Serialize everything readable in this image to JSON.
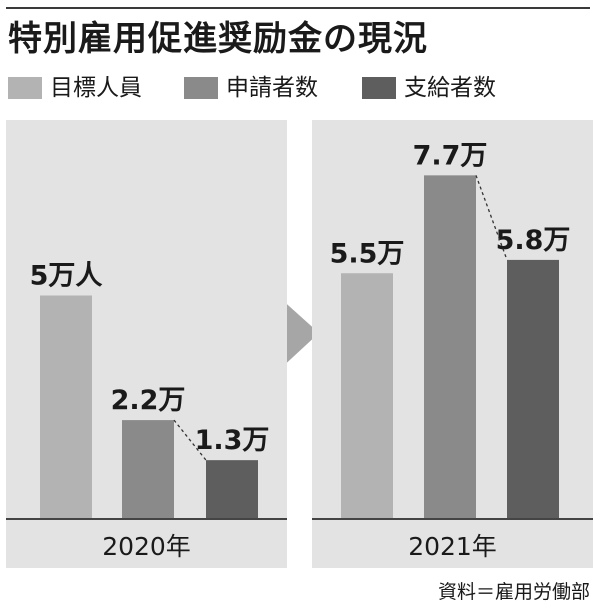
{
  "title": "特別雇用促進奨励金の現況",
  "source": "資料＝雇用労働部",
  "colors": {
    "panel": "#e3e3e3",
    "axis": "#444444",
    "arrow": "#a6a6a6"
  },
  "chart_data": {
    "type": "bar",
    "title": "特別雇用促進奨励金の現況",
    "legend_position": "top-left",
    "grid": false,
    "ylim": [
      0,
      8
    ],
    "series": [
      {
        "name": "目標人員",
        "color": "#b3b3b3"
      },
      {
        "name": "申請者数",
        "color": "#8a8a8a"
      },
      {
        "name": "支給者数",
        "color": "#5e5e5f"
      }
    ],
    "groups": [
      {
        "label": "2020年",
        "values": [
          5,
          2.2,
          1.3
        ],
        "labels": [
          "5万人",
          "2.2万",
          "1.3万"
        ]
      },
      {
        "label": "2021年",
        "values": [
          5.5,
          7.7,
          5.8
        ],
        "labels": [
          "5.5万",
          "7.7万",
          "5.8万"
        ]
      }
    ]
  }
}
